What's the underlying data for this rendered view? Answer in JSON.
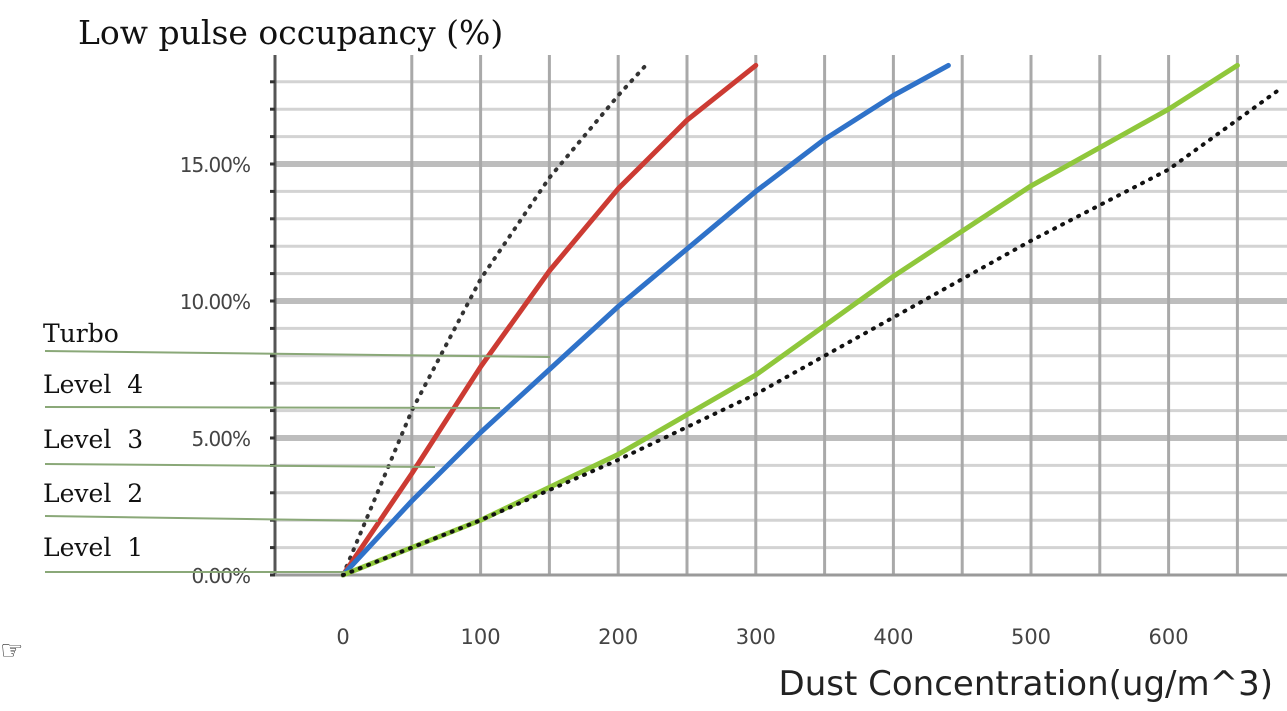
{
  "chart_data": {
    "type": "line",
    "title": "Low pulse occupancy (%)",
    "xlabel": "Dust Concentration(ug/m^3)",
    "ylabel": "",
    "x_ticks": [
      0,
      100,
      200,
      300,
      400,
      500,
      600
    ],
    "x_tick_labels": [
      "0",
      "100",
      "200",
      "300",
      "400",
      "500",
      "600"
    ],
    "y_ticks": [
      0,
      5,
      10,
      15
    ],
    "y_tick_labels": [
      "0.00%",
      "5.00%",
      "10.00%",
      "15.00%"
    ],
    "xlim": [
      -50,
      680
    ],
    "ylim": [
      0,
      18.6
    ],
    "grid": true,
    "series": [
      {
        "name": "Turbo",
        "color": "#333333",
        "style": "dotted",
        "x": [
          0,
          50,
          100,
          150,
          200,
          220
        ],
        "y": [
          0,
          6.0,
          10.8,
          14.5,
          17.5,
          18.6
        ]
      },
      {
        "name": "Level 4",
        "color": "#cc3b33",
        "style": "solid",
        "x": [
          0,
          50,
          100,
          150,
          200,
          250,
          300
        ],
        "y": [
          0,
          3.7,
          7.6,
          11.1,
          14.1,
          16.6,
          18.6
        ]
      },
      {
        "name": "Level 3",
        "color": "#2f72c9",
        "style": "solid",
        "x": [
          0,
          50,
          100,
          150,
          200,
          250,
          300,
          350,
          400,
          440
        ],
        "y": [
          0,
          2.7,
          5.2,
          7.5,
          9.8,
          11.9,
          14.0,
          15.9,
          17.5,
          18.6
        ]
      },
      {
        "name": "Level 2",
        "color": "#8fc73b",
        "style": "solid",
        "x": [
          0,
          100,
          200,
          300,
          400,
          500,
          600,
          650
        ],
        "y": [
          0,
          2.0,
          4.4,
          7.3,
          10.9,
          14.2,
          17.0,
          18.6
        ]
      },
      {
        "name": "Level 1",
        "color": "#111111",
        "style": "dotted",
        "x": [
          0,
          100,
          200,
          300,
          400,
          500,
          600,
          680
        ],
        "y": [
          0,
          2.0,
          4.2,
          6.6,
          9.4,
          12.2,
          14.8,
          17.7
        ]
      }
    ],
    "annotations": [
      "Turbo",
      "Level  4",
      "Level  3",
      "Level  2",
      "Level  1"
    ],
    "annotation_line_color": "#8aa878",
    "legend": "left, leader lines"
  },
  "icons": {
    "pointer": "☞"
  }
}
